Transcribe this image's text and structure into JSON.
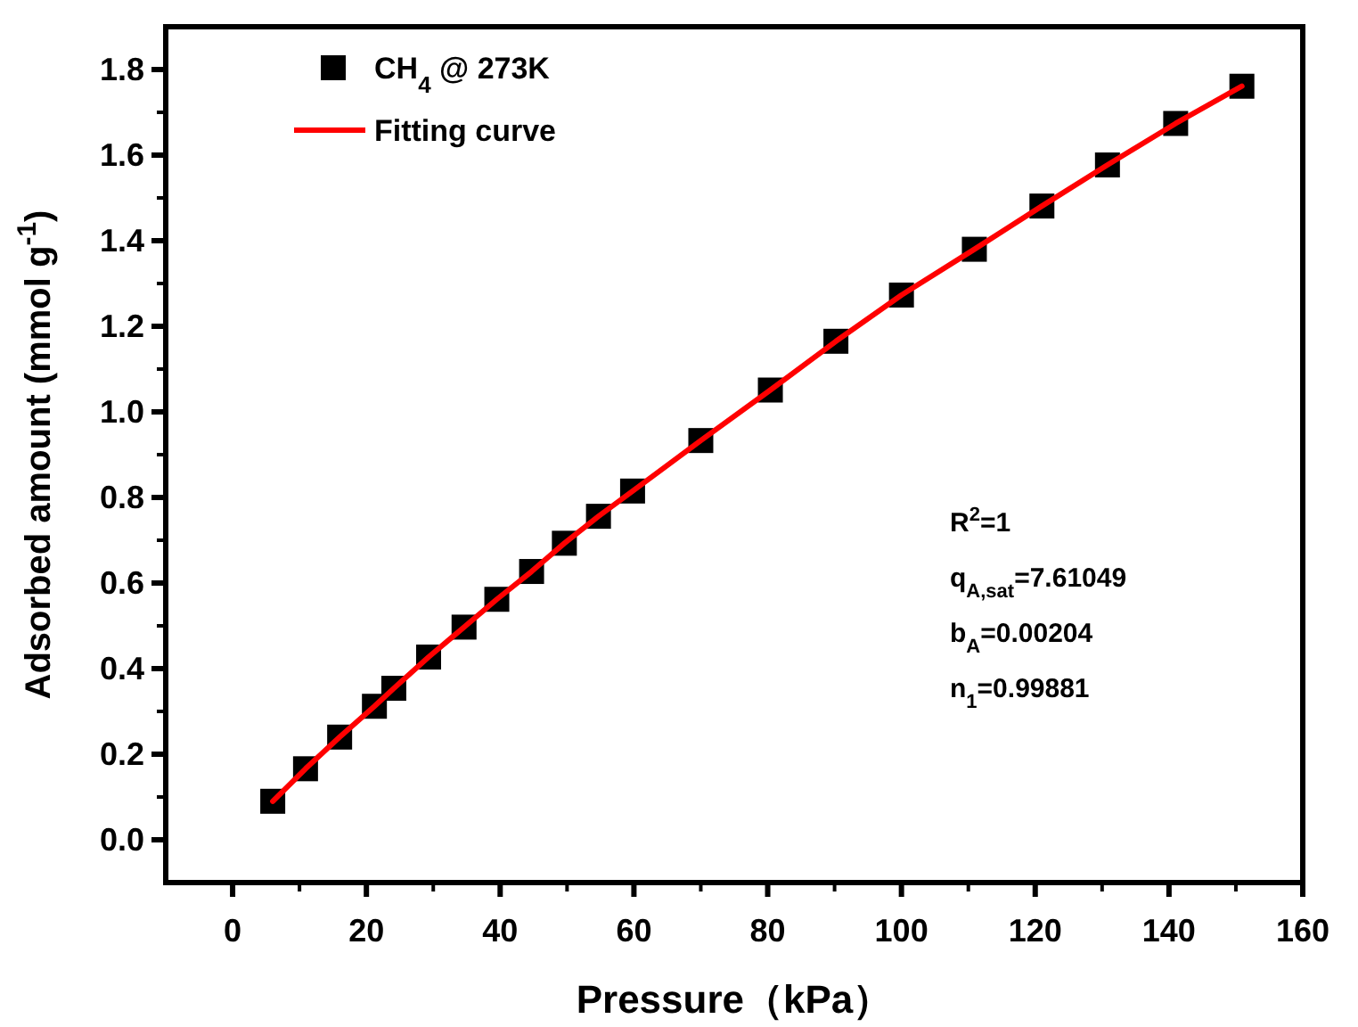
{
  "chart_data": {
    "type": "scatter",
    "xlabel": "Pressure（kPa）",
    "ylabel": "Adsorbed amount (mmol g$^{-1}$)",
    "xlim": [
      -10,
      160
    ],
    "ylim": [
      -0.1,
      1.9
    ],
    "xticks": [
      0,
      20,
      40,
      60,
      80,
      100,
      120,
      140,
      160
    ],
    "yticks": [
      {
        "value": 0,
        "label": "0.0"
      },
      {
        "value": 0.2,
        "label": "0.2"
      },
      {
        "value": 0.4,
        "label": "0.4"
      },
      {
        "value": 0.6,
        "label": "0.6"
      },
      {
        "value": 0.8,
        "label": "0.8"
      },
      {
        "value": 1.0,
        "label": "1.0"
      },
      {
        "value": 1.2,
        "label": "1.2"
      },
      {
        "value": 1.4,
        "label": "1.4"
      },
      {
        "value": 1.6,
        "label": "1.6"
      },
      {
        "value": 1.8,
        "label": "1.8"
      }
    ],
    "legend": "top left",
    "grid": false,
    "series": [
      {
        "name": "CH$_{4}$ @ 273K",
        "marker": "square",
        "color": "#000000",
        "x": [
          6.0,
          10.9,
          16.0,
          21.2,
          24.1,
          29.3,
          34.6,
          39.5,
          44.7,
          49.6,
          54.7,
          59.8,
          70.0,
          80.4,
          90.2,
          100.0,
          110.9,
          121.0,
          130.8,
          141.0,
          150.9
        ],
        "values": [
          0.09,
          0.166,
          0.24,
          0.312,
          0.354,
          0.427,
          0.497,
          0.562,
          0.627,
          0.693,
          0.756,
          0.815,
          0.933,
          1.051,
          1.165,
          1.273,
          1.38,
          1.481,
          1.577,
          1.674,
          1.761
        ]
      },
      {
        "name": "Fitting curve",
        "type": "line",
        "marker": "none",
        "color": "#ff0000",
        "x": [
          6.0,
          10.9,
          16.0,
          21.2,
          24.1,
          29.3,
          34.6,
          39.5,
          44.7,
          49.6,
          54.7,
          59.8,
          70.0,
          80.4,
          90.2,
          100.0,
          110.9,
          121.0,
          130.8,
          141.0,
          150.9
        ],
        "values": [
          0.09,
          0.166,
          0.24,
          0.312,
          0.354,
          0.427,
          0.497,
          0.562,
          0.627,
          0.693,
          0.756,
          0.815,
          0.933,
          1.051,
          1.165,
          1.273,
          1.38,
          1.481,
          1.577,
          1.674,
          1.761
        ]
      }
    ],
    "annotations": [
      "R$^{2}$=1",
      "q$_{A,sat}$=7.61049",
      "b$_{A}$=0.00204",
      "n$_{1}$=0.99881"
    ]
  }
}
